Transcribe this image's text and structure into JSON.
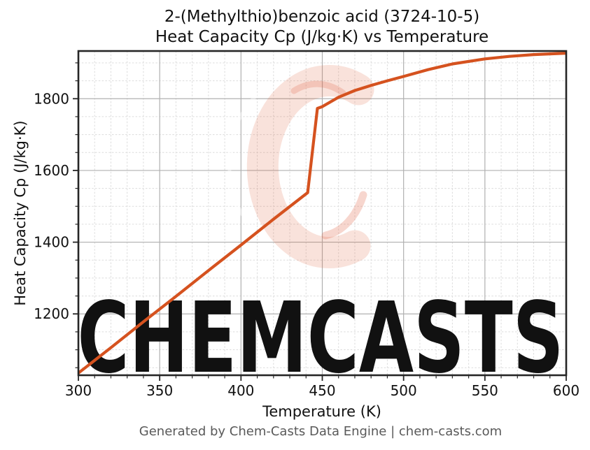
{
  "header": {
    "title_line1": "2-(Methylthio)benzoic acid (3724-10-5)",
    "title_line2": "Heat Capacity Cp (J/kg·K) vs Temperature"
  },
  "footer": {
    "text": "Generated by Chem-Casts Data Engine | chem-casts.com"
  },
  "watermark": {
    "text": "CHEMCASTS",
    "color": "#e05c3a"
  },
  "colors": {
    "series_line": "#d5521f",
    "axis_spine": "#262626",
    "tick_label": "#111111",
    "grid_major": "#b0b0b0",
    "grid_minor": "#dcdcdc",
    "footer_gray": "#595959",
    "background": "#ffffff"
  },
  "chart_data": {
    "type": "line",
    "title": "2-(Methylthio)benzoic acid (3724-10-5) — Heat Capacity Cp (J/kg·K) vs Temperature",
    "xlabel": "Temperature (K)",
    "ylabel": "Heat Capacity Cp (J/kg·K)",
    "xlim": [
      300,
      600
    ],
    "ylim": [
      1029,
      1933
    ],
    "x_major_ticks": [
      300,
      350,
      400,
      450,
      500,
      550,
      600
    ],
    "x_minor_tick_step": 10,
    "y_major_ticks": [
      1200,
      1400,
      1600,
      1800
    ],
    "y_minor_tick_step": 50,
    "grid": "major-solid, minor-dashed",
    "legend": "none",
    "series": [
      {
        "name": "Heat Capacity Cp",
        "color": "#d5521f",
        "points": [
          [
            300,
            1035
          ],
          [
            320,
            1106
          ],
          [
            340,
            1178
          ],
          [
            360,
            1249
          ],
          [
            380,
            1321
          ],
          [
            400,
            1392
          ],
          [
            420,
            1464
          ],
          [
            441,
            1538
          ],
          [
            447,
            1773
          ],
          [
            450,
            1778
          ],
          [
            460,
            1804
          ],
          [
            470,
            1823
          ],
          [
            480,
            1837
          ],
          [
            490,
            1850
          ],
          [
            500,
            1862
          ],
          [
            515,
            1881
          ],
          [
            530,
            1897
          ],
          [
            550,
            1911
          ],
          [
            565,
            1918
          ],
          [
            580,
            1923
          ],
          [
            600,
            1927
          ]
        ]
      }
    ]
  }
}
